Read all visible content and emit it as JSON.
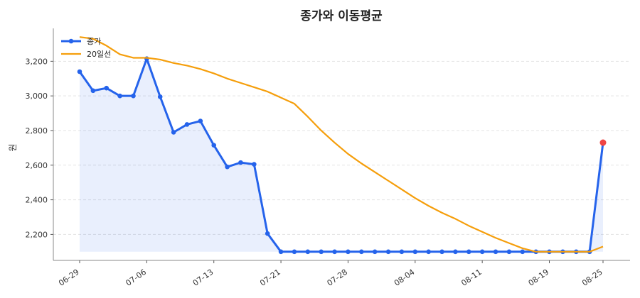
{
  "chart_data": {
    "type": "line",
    "title": "종가와 이동평균",
    "xlabel": "",
    "ylabel": "원",
    "ylim": [
      2050,
      3390
    ],
    "yticks": [
      2200,
      2400,
      2600,
      2800,
      3000,
      3200
    ],
    "ytick_labels": [
      "2,200",
      "2,400",
      "2,600",
      "2,800",
      "3,000",
      "3,200"
    ],
    "x": [
      "06-29",
      "06-30",
      "07-01",
      "07-02",
      "07-03",
      "07-06",
      "07-07",
      "07-08",
      "07-09",
      "07-10",
      "07-13",
      "07-14",
      "07-15",
      "07-16",
      "07-17",
      "07-21",
      "07-22",
      "07-23",
      "07-24",
      "07-25",
      "07-28",
      "07-29",
      "07-30",
      "07-31",
      "08-01",
      "08-04",
      "08-05",
      "08-06",
      "08-07",
      "08-08",
      "08-11",
      "08-12",
      "08-13",
      "08-14",
      "08-18",
      "08-19",
      "08-20",
      "08-21",
      "08-22",
      "08-25"
    ],
    "xticks": [
      "06-29",
      "07-06",
      "07-13",
      "07-21",
      "07-28",
      "08-04",
      "08-11",
      "08-19",
      "08-25"
    ],
    "grid": true,
    "legend_position": "top-left",
    "series": [
      {
        "name": "종가",
        "color": "#2563eb",
        "marker": true,
        "fill": true,
        "fill_baseline": 2100,
        "values": [
          3140,
          3030,
          3045,
          3000,
          3000,
          3215,
          2995,
          2790,
          2835,
          2855,
          2715,
          2590,
          2615,
          2605,
          2205,
          2100,
          2100,
          2100,
          2100,
          2100,
          2100,
          2100,
          2100,
          2100,
          2100,
          2100,
          2100,
          2100,
          2100,
          2100,
          2100,
          2100,
          2100,
          2100,
          2100,
          2100,
          2100,
          2100,
          2100,
          2730
        ]
      },
      {
        "name": "20일선",
        "color": "#f59e0b",
        "marker": false,
        "values": [
          3340,
          3330,
          3290,
          3240,
          3220,
          3220,
          3210,
          3190,
          3175,
          3155,
          3130,
          3100,
          3075,
          3050,
          3025,
          2990,
          2955,
          2880,
          2800,
          2730,
          2665,
          2610,
          2560,
          2510,
          2460,
          2410,
          2365,
          2325,
          2290,
          2250,
          2215,
          2180,
          2150,
          2120,
          2100,
          2100,
          2100,
          2100,
          2100,
          2130
        ]
      }
    ],
    "highlight": {
      "index": 39,
      "color": "#ef4444"
    }
  }
}
